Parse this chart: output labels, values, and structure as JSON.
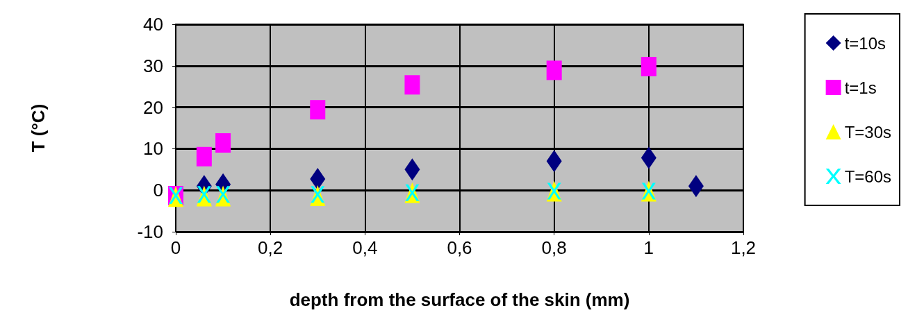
{
  "chart_data": {
    "type": "scatter",
    "xlabel": "depth from the surface of the skin (mm)",
    "ylabel": "T (°C)",
    "xlim": [
      0,
      1.2
    ],
    "xticks": [
      0,
      {
        "value": 0.2,
        "label": "0,2"
      },
      {
        "value": 0.4,
        "label": "0,4"
      },
      {
        "value": 0.6,
        "label": "0,6"
      },
      {
        "value": 0.8,
        "label": "0,8"
      },
      1,
      {
        "value": 1.2,
        "label": "1,2"
      }
    ],
    "ylim": [
      -10,
      40
    ],
    "yticks": [
      -10,
      0,
      10,
      20,
      30,
      40
    ],
    "grid": true,
    "legend": "right",
    "series": [
      {
        "name": "t=10s",
        "color": "#000080",
        "marker": "diamond",
        "x": [
          0.06,
          0.1,
          0.3,
          0.5,
          0.8,
          1,
          1.1
        ],
        "values": [
          1,
          1.4,
          2.7,
          5,
          7,
          7.8,
          1
        ]
      },
      {
        "name": "t=1s",
        "color": "#ff00ff",
        "marker": "square",
        "x": [
          0,
          0.06,
          0.1,
          0.3,
          0.5,
          0.8,
          1
        ],
        "values": [
          -1.3,
          8.1,
          11.4,
          19.4,
          25.4,
          28.9,
          29.8
        ]
      },
      {
        "name": "T=30s",
        "color": "#ffff00",
        "marker": "triangle",
        "x": [
          0,
          0.06,
          0.1,
          0.3,
          0.5,
          0.8,
          1
        ],
        "values": [
          -1.5,
          -1.4,
          -1.4,
          -1.3,
          -0.6,
          -0.2,
          -0.2
        ]
      },
      {
        "name": "T=60s",
        "color": "#00ffff",
        "marker": "cross",
        "x": [
          0,
          0.06,
          0.1,
          0.3,
          0.5,
          0.8,
          1
        ],
        "values": [
          -1.3,
          -1,
          -1,
          -1,
          -0.6,
          -0.2,
          -0.2
        ]
      }
    ]
  }
}
